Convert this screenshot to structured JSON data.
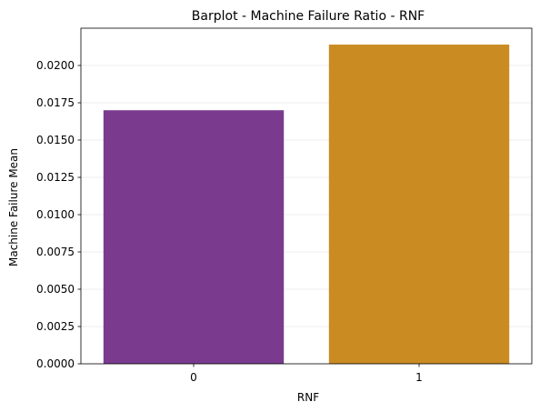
{
  "chart_data": {
    "type": "bar",
    "title": "Barplot - Machine Failure Ratio - RNF",
    "xlabel": "RNF",
    "ylabel": "Machine Failure Mean",
    "categories": [
      "0",
      "1"
    ],
    "values": [
      0.017,
      0.0214
    ],
    "colors": [
      "#7a3b8f",
      "#c98b22"
    ],
    "ylim": [
      0,
      0.0225
    ],
    "yticks": [
      0.0,
      0.0025,
      0.005,
      0.0075,
      0.01,
      0.0125,
      0.015,
      0.0175,
      0.02
    ],
    "ytick_labels": [
      "0.0000",
      "0.0025",
      "0.0050",
      "0.0075",
      "0.0100",
      "0.0125",
      "0.0150",
      "0.0175",
      "0.0200"
    ],
    "grid": true
  }
}
